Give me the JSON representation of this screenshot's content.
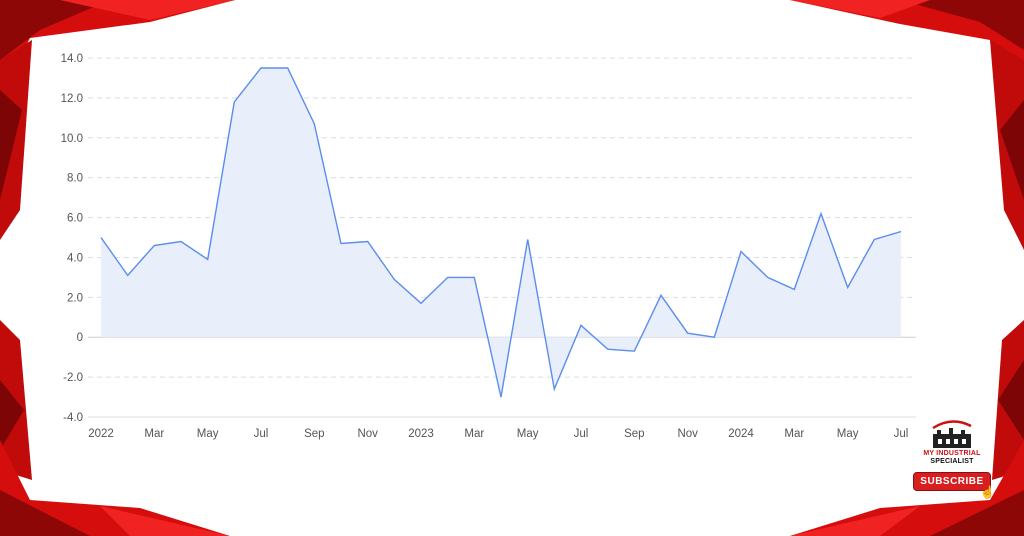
{
  "colors": {
    "frame_red": "#d60d0d",
    "frame_dark": "#8e0707",
    "line": "#5b8def",
    "fill": "#e8eefa",
    "grid": "#dddddd",
    "axis_text": "#555555"
  },
  "chart_data": {
    "type": "area",
    "title": "",
    "xlabel": "",
    "ylabel": "",
    "ylim": [
      -4,
      14
    ],
    "yticks": [
      "14.0",
      "12.0",
      "10.0",
      "8.0",
      "6.0",
      "4.0",
      "2.0",
      "0",
      "-2.0",
      "-4.0"
    ],
    "ytick_values": [
      14,
      12,
      10,
      8,
      6,
      4,
      2,
      0,
      -2,
      -4
    ],
    "xtick_labels": [
      "2022",
      "Mar",
      "May",
      "Jul",
      "Sep",
      "Nov",
      "2023",
      "Mar",
      "May",
      "Jul",
      "Sep",
      "Nov",
      "2024",
      "Mar",
      "May",
      "Jul"
    ],
    "grid": true,
    "x": [
      "2022-01",
      "2022-02",
      "2022-03",
      "2022-04",
      "2022-05",
      "2022-06",
      "2022-07",
      "2022-08",
      "2022-09",
      "2022-10",
      "2022-11",
      "2022-12",
      "2023-01",
      "2023-02",
      "2023-03",
      "2023-04",
      "2023-05",
      "2023-06",
      "2023-07",
      "2023-08",
      "2023-09",
      "2023-10",
      "2023-11",
      "2023-12",
      "2024-01",
      "2024-02",
      "2024-03",
      "2024-04",
      "2024-05",
      "2024-06",
      "2024-07"
    ],
    "values": [
      5.0,
      3.1,
      4.6,
      4.8,
      3.9,
      11.8,
      13.5,
      13.5,
      10.7,
      4.7,
      4.8,
      2.9,
      1.7,
      3.0,
      3.0,
      -3.0,
      4.9,
      -2.6,
      0.6,
      -0.6,
      -0.7,
      2.1,
      0.2,
      0.0,
      4.3,
      3.0,
      2.4,
      6.2,
      2.5,
      4.9,
      5.3
    ]
  },
  "brand": {
    "line1": "MY INDUSTRIAL",
    "line2": "SPECIALIST",
    "button_label": "SUBSCRIBE",
    "logo_icon": "factory-icon",
    "cursor_icon": "hand-pointer-icon"
  }
}
